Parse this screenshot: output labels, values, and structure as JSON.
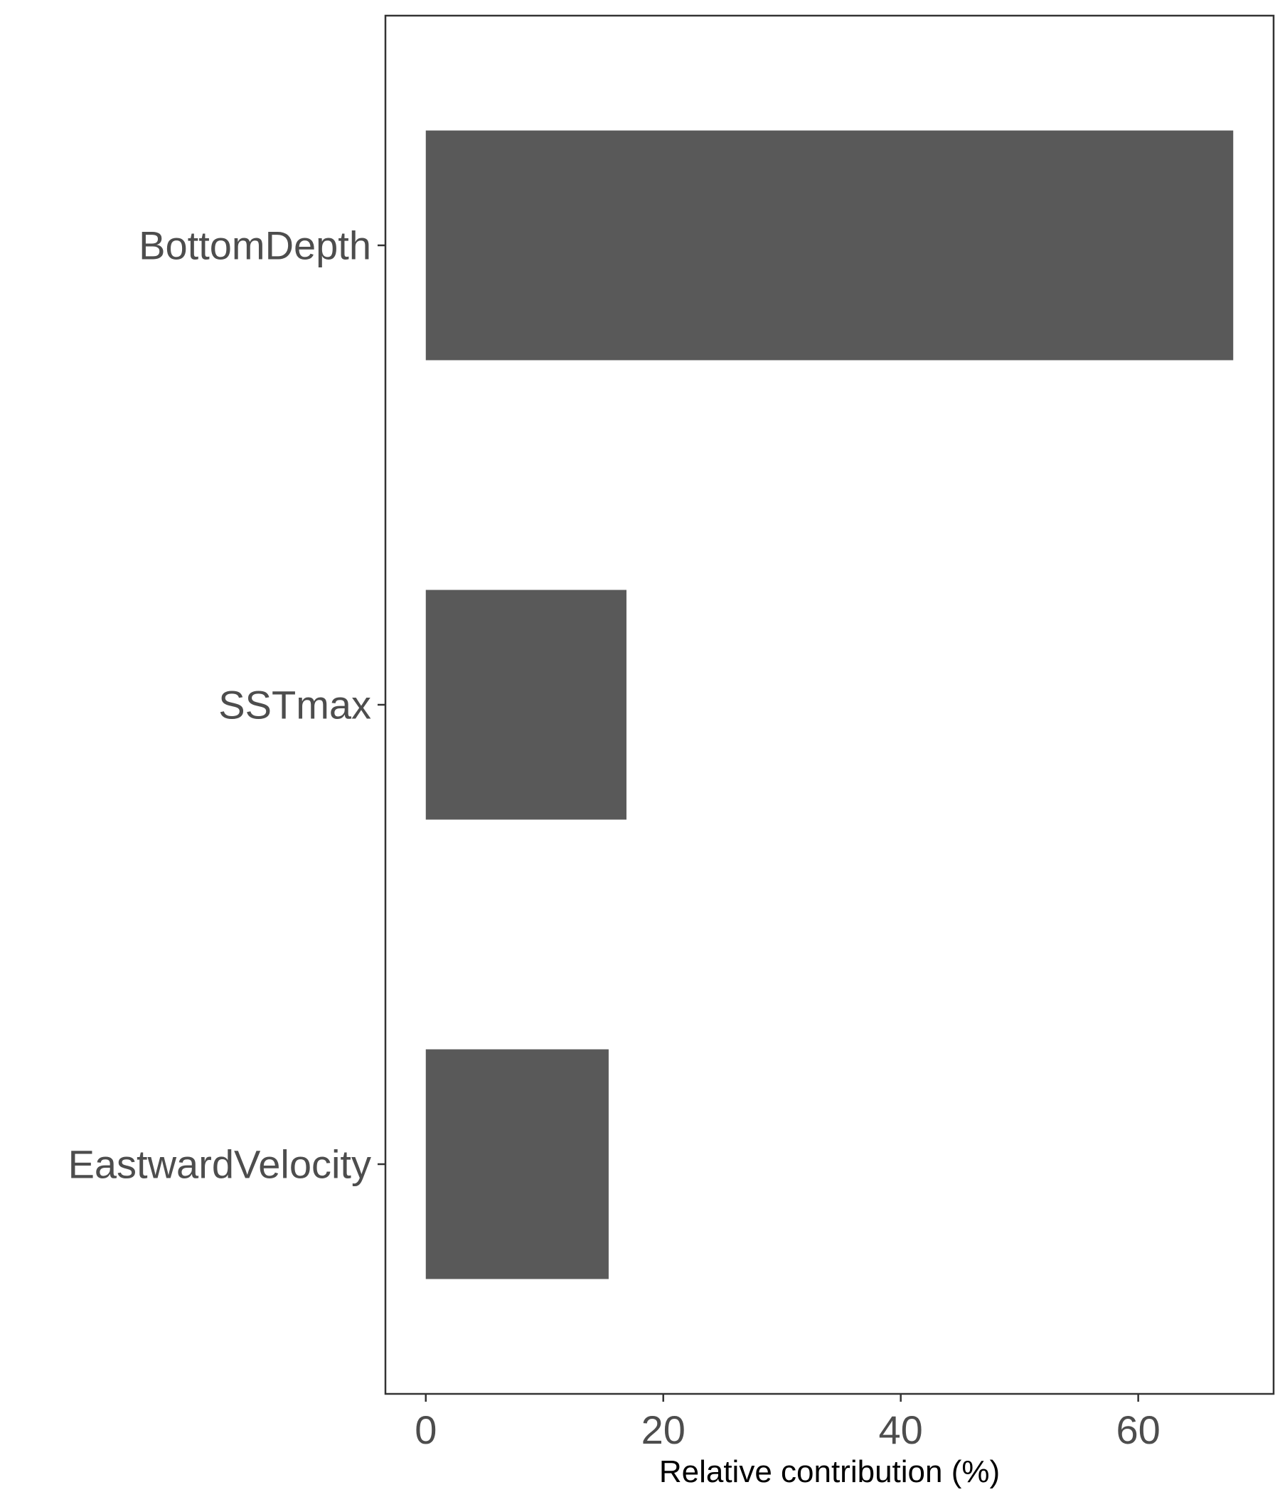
{
  "chart_data": {
    "type": "bar",
    "orientation": "horizontal",
    "title": "",
    "categories": [
      "BottomDepth",
      "SSTmax",
      "EastwardVelocity"
    ],
    "values": [
      68,
      16.9,
      15.4
    ],
    "xlabel": "Relative contribution (%)",
    "ylabel": "",
    "xlim": [
      -3.4,
      71.4
    ],
    "x_ticks": [
      "0",
      "20",
      "40",
      "60"
    ],
    "x_tick_values": [
      0,
      20,
      40,
      60
    ],
    "grid": false,
    "legend": "none",
    "colors": {
      "bar": "#595959",
      "panel_border": "#333333",
      "tick": "#333333",
      "tick_label": "#4d4d4d",
      "axis_title": "#000000"
    }
  }
}
